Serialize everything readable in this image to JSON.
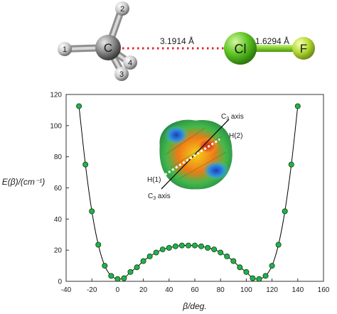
{
  "molecule": {
    "carbon_label": "C",
    "hydrogen_labels": [
      "1",
      "2",
      "3",
      "4"
    ],
    "chlorine_label": "Cl",
    "fluorine_label": "F",
    "contact_distance": "3.1914 Å",
    "bond_distance": "1.6294 Å"
  },
  "inset": {
    "c3_label_top": "C",
    "c3_label_bottom": "C",
    "c3_sub": "3",
    "axis_word": " axis",
    "h1_label": "H(1)",
    "h2_label": "H(2)"
  },
  "colors": {
    "marker_fill": "#22b14c",
    "line": "#000000",
    "chlorine": "#5ec423",
    "fluorine": "#b6db35",
    "contact_dots": "#e0242a"
  },
  "chart_data": {
    "type": "line",
    "xlabel": "β/deg.",
    "ylabel": "E(β)/(cm⁻¹)",
    "xlim": [
      -40,
      160
    ],
    "ylim": [
      0,
      120
    ],
    "xticks": [
      -40,
      -20,
      0,
      20,
      40,
      60,
      80,
      100,
      120,
      140,
      160
    ],
    "yticks": [
      0,
      20,
      40,
      60,
      80,
      100,
      120
    ],
    "grid": false,
    "series": [
      {
        "marker": "circle",
        "x": [
          -30,
          -25,
          -20,
          -15,
          -10,
          -5,
          0,
          5,
          10,
          15,
          20,
          25,
          30,
          35,
          40,
          45,
          50,
          55,
          60,
          65,
          70,
          75,
          80,
          85,
          90,
          95,
          100,
          105,
          110,
          115,
          120,
          125,
          130,
          135,
          140
        ],
        "y": [
          112.5,
          75,
          45,
          23.5,
          10,
          3.5,
          1.5,
          2,
          6,
          9,
          13,
          16,
          18.5,
          20.5,
          21.5,
          22.5,
          23,
          23,
          23,
          22.5,
          21.5,
          20.5,
          18.5,
          16,
          13,
          9,
          6,
          2,
          1.5,
          3.5,
          10,
          23.5,
          45,
          75,
          112.5
        ]
      }
    ]
  }
}
